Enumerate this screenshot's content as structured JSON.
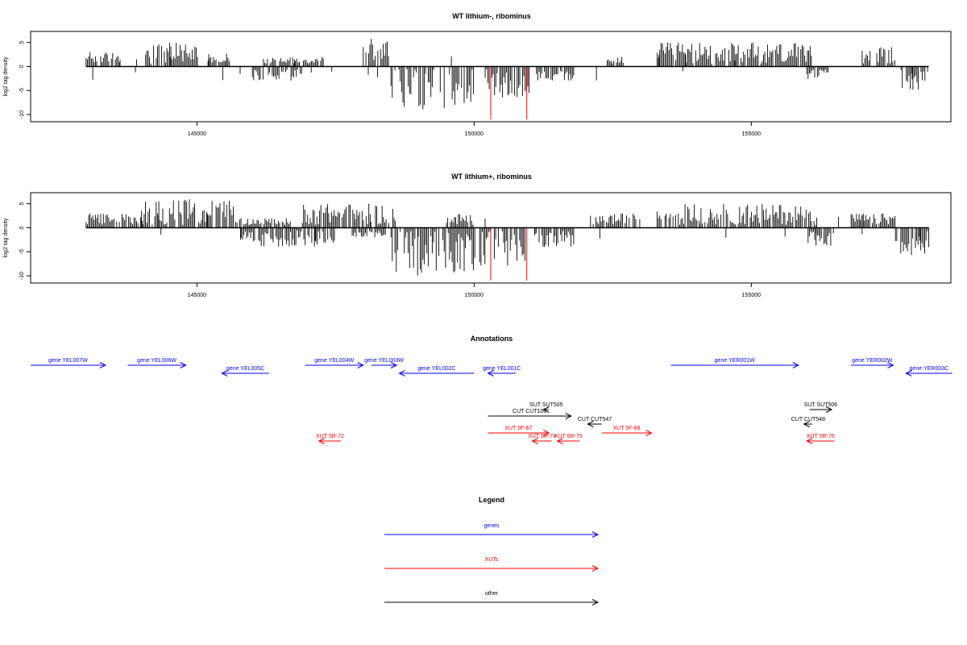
{
  "colors": {
    "genes": "#0000ff",
    "xuts": "#ff0000",
    "other": "#000000",
    "frame": "#000000",
    "background": "#ffffff"
  },
  "chart_data": [
    {
      "type": "bar",
      "title": "WT lithium-, ribominus",
      "ylabel": "log2 tag density",
      "xlabel": "",
      "xlim": [
        142000,
        158600
      ],
      "ylim": [
        -11.5,
        7.3
      ],
      "data_xlim": [
        143000,
        158200
      ],
      "xticks": [
        145000,
        150000,
        155000
      ],
      "yticks": [
        5,
        0,
        -5,
        -10
      ],
      "grid": false,
      "bars": [
        {
          "start": 143000,
          "end": 143600,
          "sign": 1,
          "max": 3
        },
        {
          "start": 144050,
          "end": 145050,
          "sign": 1,
          "max": 5
        },
        {
          "start": 145200,
          "end": 145600,
          "sign": 1,
          "max": 2
        },
        {
          "start": 146000,
          "end": 146900,
          "sign": -1,
          "max": 3
        },
        {
          "start": 146200,
          "end": 147300,
          "sign": 1,
          "max": 2
        },
        {
          "start": 148000,
          "end": 148500,
          "sign": 1,
          "max": 6
        },
        {
          "start": 148500,
          "end": 150000,
          "sign": -1,
          "max": 9
        },
        {
          "start": 150200,
          "end": 151000,
          "sign": -1,
          "max": 7
        },
        {
          "start": 151100,
          "end": 151800,
          "sign": -1,
          "max": 3
        },
        {
          "start": 152400,
          "end": 152700,
          "sign": 1,
          "max": 2
        },
        {
          "start": 153300,
          "end": 156100,
          "sign": 1,
          "max": 5
        },
        {
          "start": 156000,
          "end": 156400,
          "sign": -1,
          "max": 3
        },
        {
          "start": 157000,
          "end": 157600,
          "sign": 1,
          "max": 4
        },
        {
          "start": 157700,
          "end": 158200,
          "sign": -1,
          "max": 5
        }
      ],
      "red_marks": [
        {
          "x": 150300,
          "y": -11
        },
        {
          "x": 150950,
          "y": -11
        }
      ]
    },
    {
      "type": "bar",
      "title": "WT lithium+, ribominus",
      "ylabel": "log2 tag density",
      "xlabel": "",
      "xlim": [
        142000,
        158600
      ],
      "ylim": [
        -11.5,
        7.3
      ],
      "data_xlim": [
        143000,
        158200
      ],
      "xticks": [
        145000,
        150000,
        155000
      ],
      "yticks": [
        5,
        0,
        -5,
        -10
      ],
      "grid": false,
      "bars": [
        {
          "start": 143000,
          "end": 144000,
          "sign": 1,
          "max": 3
        },
        {
          "start": 144000,
          "end": 145700,
          "sign": 1,
          "max": 6
        },
        {
          "start": 145700,
          "end": 146700,
          "sign": 1,
          "max": 2
        },
        {
          "start": 145800,
          "end": 147500,
          "sign": -1,
          "max": 4
        },
        {
          "start": 146900,
          "end": 148600,
          "sign": 1,
          "max": 5
        },
        {
          "start": 147800,
          "end": 148400,
          "sign": -1,
          "max": 2
        },
        {
          "start": 148500,
          "end": 150100,
          "sign": -1,
          "max": 10
        },
        {
          "start": 149500,
          "end": 150000,
          "sign": 1,
          "max": 3
        },
        {
          "start": 150100,
          "end": 151000,
          "sign": -1,
          "max": 8
        },
        {
          "start": 151100,
          "end": 151800,
          "sign": -1,
          "max": 4
        },
        {
          "start": 152100,
          "end": 153000,
          "sign": 1,
          "max": 3
        },
        {
          "start": 153300,
          "end": 156200,
          "sign": 1,
          "max": 5
        },
        {
          "start": 156000,
          "end": 156500,
          "sign": -1,
          "max": 4
        },
        {
          "start": 156800,
          "end": 157600,
          "sign": 1,
          "max": 3
        },
        {
          "start": 157600,
          "end": 158200,
          "sign": -1,
          "max": 6
        }
      ],
      "red_marks": [
        {
          "x": 150300,
          "y": -11
        },
        {
          "x": 150950,
          "y": -11
        }
      ]
    }
  ],
  "annotations": {
    "title": "Annotations",
    "features": [
      {
        "label": "gene YEL007W",
        "type": "genes",
        "start": 142000,
        "end": 143350,
        "strand": "+",
        "row": 0
      },
      {
        "label": "gene YEL006W",
        "type": "genes",
        "start": 143750,
        "end": 144800,
        "strand": "+",
        "row": 0
      },
      {
        "label": "gene YEL005C",
        "type": "genes",
        "start": 145450,
        "end": 146300,
        "strand": "-",
        "row": 1
      },
      {
        "label": "gene YEL004W",
        "type": "genes",
        "start": 146950,
        "end": 148000,
        "strand": "+",
        "row": 0
      },
      {
        "label": "gene YEL003W",
        "type": "genes",
        "start": 148150,
        "end": 148600,
        "strand": "+",
        "row": 0
      },
      {
        "label": "gene YEL002C",
        "type": "genes",
        "start": 148650,
        "end": 150000,
        "strand": "-",
        "row": 1
      },
      {
        "label": "gene YEL001C",
        "type": "genes",
        "start": 150250,
        "end": 150750,
        "strand": "-",
        "row": 1
      },
      {
        "label": "gene YER001W",
        "type": "genes",
        "start": 153550,
        "end": 155850,
        "strand": "+",
        "row": 0
      },
      {
        "label": "gene YER002W",
        "type": "genes",
        "start": 156800,
        "end": 157560,
        "strand": "+",
        "row": 0
      },
      {
        "label": "gene YER003C",
        "type": "genes",
        "start": 157790,
        "end": 158620,
        "strand": "-",
        "row": 1
      },
      {
        "label": "SUT SUT505",
        "type": "other",
        "start": 151250,
        "end": 151350,
        "strand": "-",
        "row": 2
      },
      {
        "label": "CUT CUT106",
        "type": "other",
        "start": 150250,
        "end": 151750,
        "strand": "+",
        "row": 3
      },
      {
        "label": "CUT CUT547",
        "type": "other",
        "start": 152050,
        "end": 152300,
        "strand": "-",
        "row": 4
      },
      {
        "label": "SUT SUT506",
        "type": "other",
        "start": 156050,
        "end": 156450,
        "strand": "+",
        "row": 2
      },
      {
        "label": "CUT CUT548",
        "type": "other",
        "start": 155950,
        "end": 156100,
        "strand": "-",
        "row": 4
      },
      {
        "label": "XUT 5R-72",
        "type": "xuts",
        "start": 147200,
        "end": 147600,
        "strand": "-",
        "row": 6
      },
      {
        "label": "XUT 5F-67",
        "type": "xuts",
        "start": 150250,
        "end": 151350,
        "strand": "+",
        "row": 5
      },
      {
        "label": "XUT 5R-74",
        "type": "xuts",
        "start": 151050,
        "end": 151400,
        "strand": "-",
        "row": 6
      },
      {
        "label": "XUT 5R-75",
        "type": "xuts",
        "start": 151500,
        "end": 151900,
        "strand": "-",
        "row": 6
      },
      {
        "label": "XUT 5F-68",
        "type": "xuts",
        "start": 152300,
        "end": 153200,
        "strand": "+",
        "row": 5
      },
      {
        "label": "XUT 5R-76",
        "type": "xuts",
        "start": 156000,
        "end": 156500,
        "strand": "-",
        "row": 6
      }
    ]
  },
  "legend": {
    "title": "Legend",
    "items": [
      {
        "label": "genes",
        "type": "genes"
      },
      {
        "label": "XUTs",
        "type": "xuts"
      },
      {
        "label": "other",
        "type": "other"
      }
    ]
  }
}
